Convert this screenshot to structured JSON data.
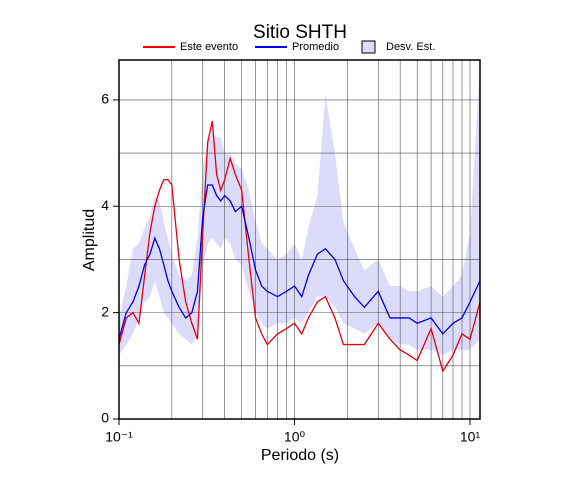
{
  "chart_data": {
    "type": "line",
    "title": "Sitio SHTH",
    "x_label": "Periodo (s)",
    "y_label": "Amplitud",
    "x": [
      0.1,
      0.11,
      0.12,
      0.13,
      0.14,
      0.15,
      0.16,
      0.17,
      0.18,
      0.19,
      0.2,
      0.22,
      0.24,
      0.26,
      0.28,
      0.3,
      0.32,
      0.34,
      0.36,
      0.38,
      0.4,
      0.43,
      0.46,
      0.5,
      0.55,
      0.6,
      0.65,
      0.7,
      0.8,
      0.9,
      1.0,
      1.1,
      1.2,
      1.35,
      1.5,
      1.7,
      1.9,
      2.2,
      2.5,
      3,
      3.5,
      4,
      4.5,
      5,
      6,
      7,
      8,
      9,
      10,
      11.4
    ],
    "series": [
      {
        "name": "Este evento",
        "color": "#e8000b",
        "values": [
          1.4,
          1.9,
          2.0,
          1.8,
          2.7,
          3.5,
          4.0,
          4.3,
          4.5,
          4.5,
          4.4,
          3.0,
          2.2,
          1.8,
          1.5,
          3.5,
          5.2,
          5.6,
          4.6,
          4.3,
          4.5,
          4.9,
          4.6,
          4.3,
          3.0,
          1.9,
          1.6,
          1.4,
          1.6,
          1.7,
          1.8,
          1.6,
          1.9,
          2.2,
          2.3,
          1.9,
          1.4,
          1.4,
          1.4,
          1.8,
          1.5,
          1.3,
          1.2,
          1.1,
          1.7,
          0.9,
          1.2,
          1.6,
          1.5,
          2.2
        ]
      },
      {
        "name": "Promedio",
        "color": "#0000e0",
        "values": [
          1.5,
          2.0,
          2.2,
          2.5,
          2.9,
          3.1,
          3.4,
          3.2,
          2.9,
          2.6,
          2.4,
          2.1,
          1.9,
          2.0,
          2.4,
          3.8,
          4.4,
          4.4,
          4.2,
          4.1,
          4.2,
          4.1,
          3.9,
          4.0,
          3.4,
          2.8,
          2.5,
          2.4,
          2.3,
          2.4,
          2.5,
          2.3,
          2.7,
          3.1,
          3.2,
          3.0,
          2.6,
          2.3,
          2.1,
          2.4,
          1.9,
          1.9,
          1.9,
          1.8,
          1.9,
          1.6,
          1.8,
          1.9,
          2.2,
          2.6
        ]
      },
      {
        "name": "Desv. Est.",
        "color": "#dcdcfa",
        "type": "band",
        "lower": [
          1.2,
          1.4,
          1.6,
          1.9,
          2.2,
          2.3,
          2.6,
          2.3,
          2.0,
          1.9,
          1.8,
          1.6,
          1.5,
          1.4,
          1.6,
          2.8,
          3.3,
          3.4,
          3.3,
          3.2,
          3.4,
          3.3,
          3.0,
          2.9,
          2.4,
          2.0,
          1.8,
          1.7,
          1.8,
          1.8,
          1.9,
          1.8,
          2.0,
          2.3,
          2.3,
          2.1,
          1.8,
          1.7,
          1.6,
          1.8,
          1.5,
          1.4,
          1.4,
          1.3,
          1.3,
          1.2,
          1.3,
          1.3,
          1.3,
          1.5
        ],
        "upper": [
          1.9,
          2.5,
          3.2,
          3.3,
          3.6,
          3.8,
          4.2,
          4.1,
          3.7,
          3.4,
          3.1,
          2.7,
          2.6,
          2.7,
          3.4,
          4.7,
          5.2,
          5.4,
          5.3,
          5.3,
          5.0,
          5.0,
          4.8,
          4.7,
          4.3,
          3.7,
          3.3,
          3.2,
          3.0,
          3.1,
          3.3,
          3.0,
          3.6,
          4.2,
          6.1,
          5.0,
          3.7,
          3.2,
          2.8,
          3.0,
          2.5,
          2.5,
          2.4,
          2.4,
          2.5,
          2.3,
          2.5,
          2.7,
          3.5,
          6.7
        ]
      }
    ],
    "xscale": "log",
    "xlim": [
      0.1,
      11.4
    ],
    "xticks": [
      {
        "value": 0.1,
        "label": "10⁻¹"
      },
      {
        "value": 1,
        "label": "10⁰"
      },
      {
        "value": 10,
        "label": "10¹"
      }
    ],
    "xminor": [
      0.2,
      0.3,
      0.4,
      0.5,
      0.6,
      0.7,
      0.8,
      0.9,
      2,
      3,
      4,
      5,
      6,
      7,
      8,
      9
    ],
    "ylim": [
      0,
      6.75
    ],
    "yticks": [
      0,
      2,
      4,
      6
    ],
    "yminor": [
      1,
      3,
      5
    ],
    "grid": true,
    "legend": "top"
  }
}
